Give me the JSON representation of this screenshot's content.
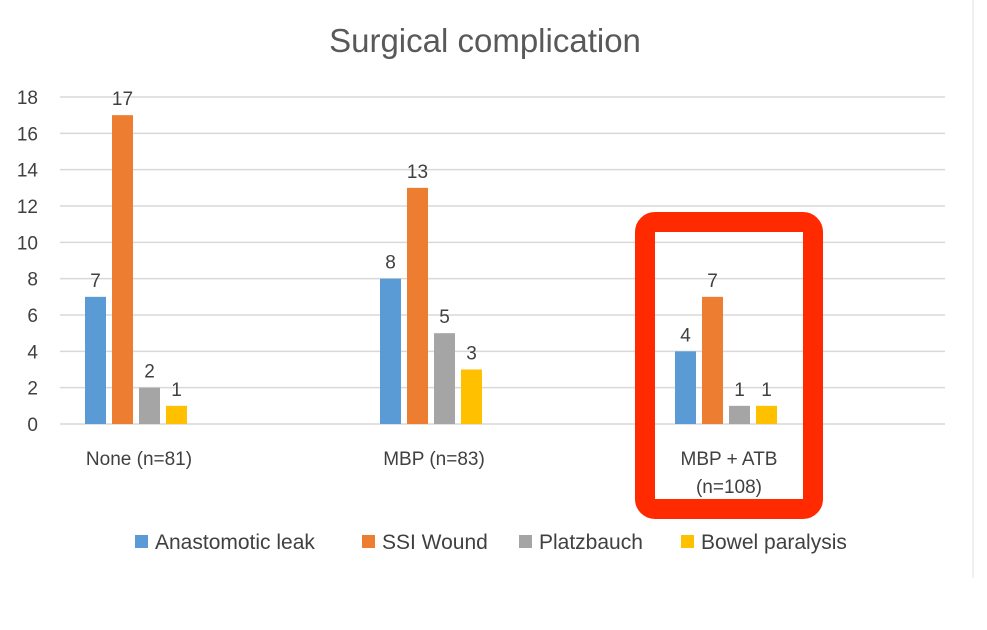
{
  "chart_data": {
    "type": "bar",
    "title": "Surgical complication",
    "categories": [
      "None  (n=81)",
      "MBP (n=83)",
      "MBP + ATB\n(n=108)"
    ],
    "series": [
      {
        "name": "Anastomotic leak",
        "color": "#5b9bd5",
        "values": [
          7,
          8,
          4
        ]
      },
      {
        "name": "SSI Wound",
        "color": "#ed7d31",
        "values": [
          17,
          13,
          7
        ]
      },
      {
        "name": "Platzbauch",
        "color": "#a5a5a5",
        "values": [
          2,
          5,
          1
        ]
      },
      {
        "name": "Bowel paralysis",
        "color": "#ffc000",
        "values": [
          1,
          3,
          1
        ]
      }
    ],
    "ylim": [
      0,
      18
    ],
    "yticks": [
      0,
      2,
      4,
      6,
      8,
      10,
      12,
      14,
      16,
      18
    ],
    "grid": true,
    "legend": "bottom",
    "highlight": {
      "category_index": 2,
      "color": "#ff2a00"
    }
  }
}
